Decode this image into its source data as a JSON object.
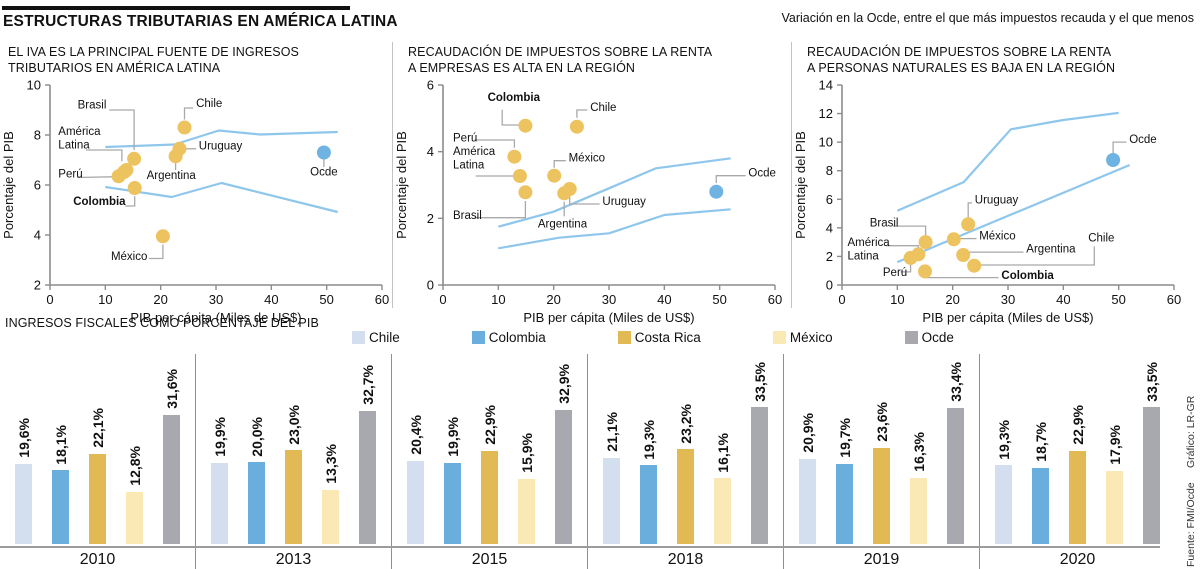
{
  "header": {
    "title": "ESTRUCTURAS TRIBUTARIAS EN AMÉRICA LATINA",
    "legend_label": "Variación en la Ocde, entre el que más impuestos recauda y el que menos"
  },
  "footer": {
    "source": "Fuente: FMI/Ocde",
    "credit": "Gráfico: LR-GR"
  },
  "colors": {
    "dot": "#ecc35f",
    "ocde_dot": "#6fb3e3",
    "band": "#8fc6ec",
    "connector": "#a9a9a9",
    "axis": "#8c8c8c",
    "text": "#111111",
    "chile": "#d3deee",
    "colombia": "#6aaede",
    "costarica": "#e2ba55",
    "mexico": "#fae8b5",
    "ocde_bar": "#a8a8af"
  },
  "chart_data": [
    {
      "type": "scatter",
      "title_lines": [
        "EL IVA ES LA PRINCIPAL FUENTE DE INGRESOS",
        "TRIBUTARIOS EN AMÉRICA LATINA"
      ],
      "xlabel": "PIB per cápita (Miles de US$)",
      "ylabel": "Porcentaje del PIB",
      "xlim": [
        0,
        60
      ],
      "ylim": [
        2,
        10
      ],
      "xticks": [
        0,
        10,
        20,
        30,
        40,
        50,
        60
      ],
      "yticks": [
        2,
        4,
        6,
        8,
        10
      ],
      "band_upper": [
        [
          10,
          7.52
        ],
        [
          22.5,
          7.62
        ],
        [
          30.5,
          8.18
        ],
        [
          38,
          8.02
        ],
        [
          52,
          8.12
        ]
      ],
      "band_lower": [
        [
          10,
          5.92
        ],
        [
          22,
          5.52
        ],
        [
          31,
          6.08
        ],
        [
          52,
          4.92
        ]
      ],
      "points": [
        {
          "name": "Brasil",
          "x": 15.2,
          "y": 7.05,
          "lines": [
            "Brasil"
          ],
          "lx": 10.2,
          "ly": 9.05,
          "anchor": "end",
          "bold": false,
          "conn": [
            [
              10.7,
              9.0
            ],
            [
              15.2,
              9.0
            ],
            [
              15.2,
              7.4
            ]
          ]
        },
        {
          "name": "América Latina",
          "x": 13.8,
          "y": 6.6,
          "lines": [
            "América",
            "Latina"
          ],
          "lx": 1.5,
          "ly": 8.0,
          "anchor": "start",
          "bold": false,
          "conn": [
            [
              6.5,
              7.4
            ],
            [
              13.0,
              7.4
            ],
            [
              13.0,
              6.95
            ]
          ]
        },
        {
          "name": "Perú",
          "x": 12.4,
          "y": 6.35,
          "lines": [
            "Perú"
          ],
          "lx": 1.5,
          "ly": 6.3,
          "anchor": "start",
          "bold": false,
          "conn": [
            [
              4.9,
              6.3
            ],
            [
              11.2,
              6.33
            ]
          ]
        },
        {
          "name": "Perú b",
          "x": 13.4,
          "y": 6.52,
          "lines": [],
          "lx": 0,
          "ly": 0,
          "anchor": "start",
          "bold": false,
          "conn": []
        },
        {
          "name": "Colombia",
          "x": 15.3,
          "y": 5.88,
          "lines": [
            "Colombia"
          ],
          "lx": 4.2,
          "ly": 5.2,
          "anchor": "start",
          "bold": true,
          "conn": [
            [
              13.6,
              5.16
            ],
            [
              15.3,
              5.16
            ],
            [
              15.3,
              5.55
            ]
          ]
        },
        {
          "name": "Chile",
          "x": 24.3,
          "y": 8.3,
          "lines": [
            "Chile"
          ],
          "lx": 26.4,
          "ly": 9.12,
          "anchor": "start",
          "bold": false,
          "conn": [
            [
              25.9,
              9.08
            ],
            [
              24.3,
              9.08
            ],
            [
              24.3,
              8.62
            ]
          ]
        },
        {
          "name": "Uruguay",
          "x": 23.4,
          "y": 7.45,
          "lines": [
            "Uruguay"
          ],
          "lx": 26.9,
          "ly": 7.42,
          "anchor": "start",
          "bold": false,
          "conn": [
            [
              26.4,
              7.45
            ],
            [
              24.4,
              7.45
            ]
          ]
        },
        {
          "name": "Argentina",
          "x": 22.7,
          "y": 7.15,
          "lines": [
            "Argentina"
          ],
          "lx": 21.9,
          "ly": 6.25,
          "anchor": "middle",
          "bold": false,
          "conn": [
            [
              22.7,
              6.6
            ],
            [
              22.7,
              6.88
            ]
          ]
        },
        {
          "name": "México",
          "x": 20.4,
          "y": 3.95,
          "lines": [
            "México"
          ],
          "lx": 17.6,
          "ly": 3.0,
          "anchor": "end",
          "bold": false,
          "conn": [
            [
              17.9,
              3.06
            ],
            [
              20.4,
              3.06
            ],
            [
              20.4,
              3.62
            ]
          ]
        },
        {
          "name": "Ocde",
          "x": 49.5,
          "y": 7.3,
          "ocde": true,
          "lines": [
            "Ocde"
          ],
          "lx": 49.5,
          "ly": 6.38,
          "anchor": "middle",
          "bold": false,
          "conn": [
            [
              49.5,
              6.72
            ],
            [
              49.5,
              7.02
            ]
          ]
        }
      ]
    },
    {
      "type": "scatter",
      "title_lines": [
        "RECAUDACIÓN DE IMPUESTOS SOBRE LA RENTA",
        "A EMPRESAS ES ALTA EN LA REGIÓN"
      ],
      "xlabel": "PIB per cápita (Miles de US$)",
      "ylabel": "Porcentaje del PIB",
      "xlim": [
        0,
        60
      ],
      "ylim": [
        0,
        6
      ],
      "xticks": [
        0,
        10,
        20,
        30,
        40,
        50,
        60
      ],
      "yticks": [
        0,
        2,
        4,
        6
      ],
      "band_upper": [
        [
          10,
          1.75
        ],
        [
          20,
          2.2
        ],
        [
          30,
          2.9
        ],
        [
          38.5,
          3.5
        ],
        [
          52,
          3.8
        ]
      ],
      "band_lower": [
        [
          10,
          1.1
        ],
        [
          21,
          1.42
        ],
        [
          30,
          1.55
        ],
        [
          40,
          2.1
        ],
        [
          52,
          2.27
        ]
      ],
      "points": [
        {
          "name": "Colombia",
          "x": 14.9,
          "y": 4.78,
          "lines": [
            "Colombia"
          ],
          "lx": 12.8,
          "ly": 5.52,
          "anchor": "middle",
          "bold": true,
          "conn": [
            [
              10.7,
              5.26
            ],
            [
              10.7,
              4.8
            ],
            [
              13.8,
              4.8
            ]
          ]
        },
        {
          "name": "Chile",
          "x": 24.2,
          "y": 4.75,
          "lines": [
            "Chile"
          ],
          "lx": 26.6,
          "ly": 5.22,
          "anchor": "start",
          "bold": false,
          "conn": [
            [
              26.1,
              5.25
            ],
            [
              24.2,
              5.25
            ],
            [
              24.2,
              5.02
            ]
          ]
        },
        {
          "name": "Perú",
          "x": 12.9,
          "y": 3.85,
          "lines": [
            "Perú"
          ],
          "lx": 1.8,
          "ly": 4.3,
          "anchor": "start",
          "bold": false,
          "conn": [
            [
              5.7,
              4.35
            ],
            [
              12.9,
              4.35
            ],
            [
              12.9,
              4.12
            ]
          ]
        },
        {
          "name": "América Latina",
          "x": 13.9,
          "y": 3.27,
          "lines": [
            "América",
            "Latina"
          ],
          "lx": 1.8,
          "ly": 3.9,
          "anchor": "start",
          "bold": false,
          "conn": [
            [
              5.9,
              3.27
            ],
            [
              12.9,
              3.27
            ]
          ]
        },
        {
          "name": "Brasil",
          "x": 14.9,
          "y": 2.78,
          "lines": [
            "Brasil"
          ],
          "lx": 1.8,
          "ly": 1.98,
          "anchor": "start",
          "bold": false,
          "conn": [
            [
              5.7,
              2.02
            ],
            [
              14.9,
              2.02
            ],
            [
              14.9,
              2.52
            ]
          ]
        },
        {
          "name": "México",
          "x": 20.1,
          "y": 3.28,
          "lines": [
            "México"
          ],
          "lx": 22.7,
          "ly": 3.7,
          "anchor": "start",
          "bold": false,
          "conn": [
            [
              22.2,
              3.73
            ],
            [
              20.1,
              3.73
            ],
            [
              20.1,
              3.52
            ]
          ]
        },
        {
          "name": "Uruguay",
          "x": 22.9,
          "y": 2.88,
          "lines": [
            "Uruguay"
          ],
          "lx": 28.8,
          "ly": 2.4,
          "anchor": "start",
          "bold": false,
          "conn": [
            [
              28.3,
              2.43
            ],
            [
              22.9,
              2.43
            ],
            [
              22.9,
              2.64
            ]
          ]
        },
        {
          "name": "Argentina",
          "x": 21.9,
          "y": 2.75,
          "lines": [
            "Argentina"
          ],
          "lx": 21.6,
          "ly": 1.72,
          "anchor": "middle",
          "bold": false,
          "conn": [
            [
              21.9,
              2.06
            ],
            [
              21.9,
              2.5
            ]
          ]
        },
        {
          "name": "Ocde",
          "x": 49.4,
          "y": 2.8,
          "ocde": true,
          "lines": [
            "Ocde"
          ],
          "lx": 55.2,
          "ly": 3.26,
          "anchor": "start",
          "bold": false,
          "conn": [
            [
              54.7,
              3.28
            ],
            [
              49.4,
              3.28
            ],
            [
              49.4,
              3.06
            ]
          ]
        }
      ]
    },
    {
      "type": "scatter",
      "title_lines": [
        "RECAUDACIÓN DE IMPUESTOS SOBRE LA RENTA",
        "A PERSONAS NATURALES ES BAJA EN LA REGIÓN"
      ],
      "xlabel": "PIB per cápita (Miles de US$)",
      "ylabel": "Porcentaje del PIB",
      "xlim": [
        0,
        60
      ],
      "ylim": [
        0,
        14
      ],
      "xticks": [
        0,
        10,
        20,
        30,
        40,
        50,
        60
      ],
      "yticks": [
        0,
        2,
        4,
        6,
        8,
        10,
        12,
        14
      ],
      "band_upper": [
        [
          10,
          5.2
        ],
        [
          22,
          7.2
        ],
        [
          30.5,
          10.9
        ],
        [
          40,
          11.55
        ],
        [
          50,
          12.05
        ]
      ],
      "band_lower": [
        [
          10,
          1.6
        ],
        [
          52,
          8.4
        ]
      ],
      "points": [
        {
          "name": "Brasil",
          "x": 15.1,
          "y": 3.0,
          "lines": [
            "Brasil"
          ],
          "lx": 5.0,
          "ly": 4.08,
          "anchor": "start",
          "bold": false,
          "conn": [
            [
              9.2,
              4.12
            ],
            [
              15.1,
              4.12
            ],
            [
              15.1,
              3.35
            ]
          ]
        },
        {
          "name": "América Latina",
          "x": 13.8,
          "y": 2.15,
          "lines": [
            "América",
            "Latina"
          ],
          "lx": 1.0,
          "ly": 2.72,
          "anchor": "start",
          "bold": false,
          "conn": [
            [
              7.9,
              2.75
            ],
            [
              13.8,
              2.75
            ],
            [
              13.8,
              2.5
            ]
          ]
        },
        {
          "name": "Perú",
          "x": 12.4,
          "y": 1.9,
          "lines": [
            "Perú"
          ],
          "lx": 7.4,
          "ly": 0.62,
          "anchor": "start",
          "bold": false,
          "conn": [
            [
              10.6,
              0.92
            ],
            [
              12.4,
              0.92
            ],
            [
              12.4,
              1.52
            ]
          ]
        },
        {
          "name": "Colombia",
          "x": 15.0,
          "y": 0.95,
          "lines": [
            "Colombia"
          ],
          "lx": 28.8,
          "ly": 0.42,
          "anchor": "start",
          "bold": true,
          "conn": [
            [
              28.3,
              0.52
            ],
            [
              15.0,
              0.52
            ],
            [
              15.0,
              0.68
            ]
          ]
        },
        {
          "name": "Uruguay",
          "x": 22.8,
          "y": 4.25,
          "lines": [
            "Uruguay"
          ],
          "lx": 24.0,
          "ly": 5.72,
          "anchor": "start",
          "bold": false,
          "conn": [
            [
              23.5,
              5.75
            ],
            [
              22.8,
              5.75
            ],
            [
              22.8,
              4.62
            ]
          ]
        },
        {
          "name": "México",
          "x": 20.2,
          "y": 3.2,
          "lines": [
            "México"
          ],
          "lx": 24.8,
          "ly": 3.2,
          "anchor": "start",
          "bold": false,
          "conn": [
            [
              24.3,
              3.25
            ],
            [
              21.0,
              3.25
            ]
          ]
        },
        {
          "name": "Argentina",
          "x": 21.9,
          "y": 2.1,
          "lines": [
            "Argentina"
          ],
          "lx": 33.3,
          "ly": 2.28,
          "anchor": "start",
          "bold": false,
          "conn": [
            [
              32.8,
              2.3
            ],
            [
              22.7,
              2.3
            ],
            [
              22.7,
              2.2
            ]
          ]
        },
        {
          "name": "Chile",
          "x": 23.9,
          "y": 1.35,
          "lines": [
            "Chile"
          ],
          "lx": 44.5,
          "ly": 3.05,
          "anchor": "start",
          "bold": false,
          "conn": [
            [
              45.6,
              2.7
            ],
            [
              45.6,
              1.4
            ],
            [
              24.7,
              1.4
            ]
          ]
        },
        {
          "name": "Ocde",
          "x": 49.0,
          "y": 8.75,
          "ocde": true,
          "lines": [
            "Ocde"
          ],
          "lx": 51.9,
          "ly": 9.95,
          "anchor": "start",
          "bold": false,
          "conn": [
            [
              51.4,
              10.0
            ],
            [
              49.0,
              10.0
            ],
            [
              49.0,
              9.15
            ]
          ]
        }
      ]
    },
    {
      "type": "bar",
      "section_title": "INGRESOS FISCALES COMO PORCENTAJE DEL PIB",
      "categories": [
        "2010",
        "2013",
        "2015",
        "2018",
        "2019",
        "2020"
      ],
      "series": [
        {
          "name": "Chile",
          "color_key": "chile",
          "values": [
            19.6,
            19.9,
            20.4,
            21.1,
            20.9,
            19.3
          ],
          "labels": [
            "19,6%",
            "19,9%",
            "20,4%",
            "21,1%",
            "20,9%",
            "19,3%"
          ]
        },
        {
          "name": "Colombia",
          "color_key": "colombia",
          "values": [
            18.1,
            20.0,
            19.9,
            19.3,
            19.7,
            18.7
          ],
          "labels": [
            "18,1%",
            "20,0%",
            "19,9%",
            "19,3%",
            "19,7%",
            "18,7%"
          ]
        },
        {
          "name": "Costa Rica",
          "color_key": "costarica",
          "values": [
            22.1,
            23.0,
            22.9,
            23.2,
            23.6,
            22.9
          ],
          "labels": [
            "22,1%",
            "23,0%",
            "22,9%",
            "23,2%",
            "23,6%",
            "22,9%"
          ]
        },
        {
          "name": "México",
          "color_key": "mexico",
          "values": [
            12.8,
            13.3,
            15.9,
            16.1,
            16.3,
            17.9
          ],
          "labels": [
            "12,8%",
            "13,3%",
            "15,9%",
            "16,1%",
            "16,3%",
            "17,9%"
          ]
        },
        {
          "name": "Ocde",
          "color_key": "ocde_bar",
          "values": [
            31.6,
            32.7,
            32.9,
            33.5,
            33.4,
            33.5
          ],
          "labels": [
            "31,6%",
            "32,7%",
            "32,9%",
            "33,5%",
            "33,4%",
            "33,5%"
          ]
        }
      ]
    }
  ]
}
